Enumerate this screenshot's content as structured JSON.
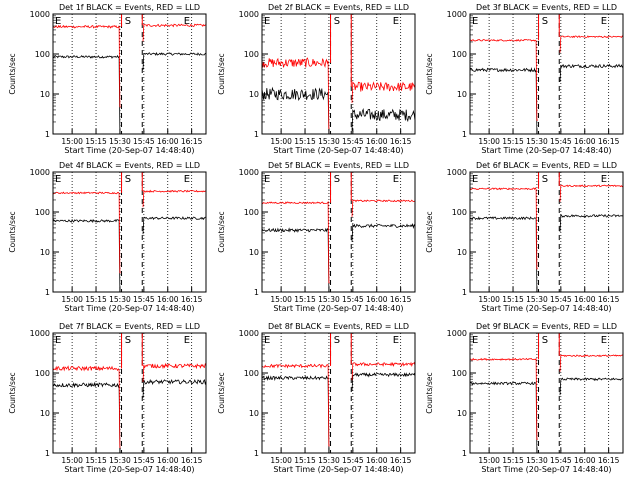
{
  "chart_data": [
    {
      "type": "line",
      "title": "Det 1f BLACK = Events, RED = LLD",
      "xlabel": "Start Time (20-Sep-07 14:48:40)",
      "ylabel": "Counts/sec",
      "yscale": "log",
      "ylim": [
        1,
        1000
      ],
      "xticks": [
        "15:00",
        "15:15",
        "15:30",
        "15:45",
        "16:00",
        "16:15"
      ],
      "markers": [
        {
          "x": "14:48",
          "label": "E"
        },
        {
          "x": "15:33",
          "label": "S"
        },
        {
          "x": "16:10",
          "label": "E"
        }
      ],
      "series": [
        {
          "name": "Events",
          "color": "#000000",
          "level_before": 85,
          "level_after": 100,
          "noise": 0.03
        },
        {
          "name": "LLD",
          "color": "#ff0000",
          "level_before": 480,
          "level_after": 520,
          "noise": 0.03
        }
      ]
    },
    {
      "type": "line",
      "title": "Det 2f BLACK = Events, RED = LLD",
      "xlabel": "Start Time (20-Sep-07 14:48:40)",
      "ylabel": "Counts/sec",
      "yscale": "log",
      "ylim": [
        1,
        1000
      ],
      "xticks": [
        "15:00",
        "15:15",
        "15:30",
        "15:45",
        "16:00",
        "16:15"
      ],
      "markers": [
        {
          "x": "14:48",
          "label": "E"
        },
        {
          "x": "15:33",
          "label": "S"
        },
        {
          "x": "16:10",
          "label": "E"
        }
      ],
      "series": [
        {
          "name": "Events",
          "color": "#000000",
          "level_before": 10,
          "level_after": 3,
          "noise": 0.15
        },
        {
          "name": "LLD",
          "color": "#ff0000",
          "level_before": 60,
          "level_after": 15,
          "noise": 0.12
        }
      ]
    },
    {
      "type": "line",
      "title": "Det 3f BLACK = Events, RED = LLD",
      "xlabel": "Start Time (20-Sep-07 14:48:40)",
      "ylabel": "Counts/sec",
      "yscale": "log",
      "ylim": [
        1,
        1000
      ],
      "xticks": [
        "15:00",
        "15:15",
        "15:30",
        "15:45",
        "16:00",
        "16:15"
      ],
      "markers": [
        {
          "x": "14:48",
          "label": "E"
        },
        {
          "x": "15:33",
          "label": "S"
        },
        {
          "x": "16:10",
          "label": "E"
        }
      ],
      "series": [
        {
          "name": "Events",
          "color": "#000000",
          "level_before": 40,
          "level_after": 50,
          "noise": 0.04
        },
        {
          "name": "LLD",
          "color": "#ff0000",
          "level_before": 220,
          "level_after": 270,
          "noise": 0.02
        }
      ]
    },
    {
      "type": "line",
      "title": "Det 4f BLACK = Events, RED = LLD",
      "xlabel": "Start Time (20-Sep-07 14:48:40)",
      "ylabel": "Counts/sec",
      "yscale": "log",
      "ylim": [
        1,
        1000
      ],
      "xticks": [
        "15:00",
        "15:15",
        "15:30",
        "15:45",
        "16:00",
        "16:15"
      ],
      "markers": [
        {
          "x": "14:48",
          "label": "E"
        },
        {
          "x": "15:33",
          "label": "S"
        },
        {
          "x": "16:10",
          "label": "E"
        }
      ],
      "series": [
        {
          "name": "Events",
          "color": "#000000",
          "level_before": 60,
          "level_after": 70,
          "noise": 0.03
        },
        {
          "name": "LLD",
          "color": "#ff0000",
          "level_before": 300,
          "level_after": 330,
          "noise": 0.02
        }
      ]
    },
    {
      "type": "line",
      "title": "Det 5f BLACK = Events, RED = LLD",
      "xlabel": "Start Time (20-Sep-07 14:48:40)",
      "ylabel": "Counts/sec",
      "yscale": "log",
      "ylim": [
        1,
        1000
      ],
      "xticks": [
        "15:00",
        "15:15",
        "15:30",
        "15:45",
        "16:00",
        "16:15"
      ],
      "markers": [
        {
          "x": "14:48",
          "label": "E"
        },
        {
          "x": "15:33",
          "label": "S"
        },
        {
          "x": "16:10",
          "label": "E"
        }
      ],
      "series": [
        {
          "name": "Events",
          "color": "#000000",
          "level_before": 35,
          "level_after": 45,
          "noise": 0.04
        },
        {
          "name": "LLD",
          "color": "#ff0000",
          "level_before": 170,
          "level_after": 190,
          "noise": 0.02
        }
      ]
    },
    {
      "type": "line",
      "title": "Det 6f BLACK = Events, RED = LLD",
      "xlabel": "Start Time (20-Sep-07 14:48:40)",
      "ylabel": "Counts/sec",
      "yscale": "log",
      "ylim": [
        1,
        1000
      ],
      "xticks": [
        "15:00",
        "15:15",
        "15:30",
        "15:45",
        "16:00",
        "16:15"
      ],
      "markers": [
        {
          "x": "14:48",
          "label": "E"
        },
        {
          "x": "15:33",
          "label": "S"
        },
        {
          "x": "16:10",
          "label": "E"
        }
      ],
      "series": [
        {
          "name": "Events",
          "color": "#000000",
          "level_before": 70,
          "level_after": 80,
          "noise": 0.03
        },
        {
          "name": "LLD",
          "color": "#ff0000",
          "level_before": 380,
          "level_after": 450,
          "noise": 0.02
        }
      ]
    },
    {
      "type": "line",
      "title": "Det 7f BLACK = Events, RED = LLD",
      "xlabel": "Start Time (20-Sep-07 14:48:40)",
      "ylabel": "Counts/sec",
      "yscale": "log",
      "ylim": [
        1,
        1000
      ],
      "xticks": [
        "15:00",
        "15:15",
        "15:30",
        "15:45",
        "16:00",
        "16:15"
      ],
      "markers": [
        {
          "x": "14:48",
          "label": "E"
        },
        {
          "x": "15:33",
          "label": "S"
        },
        {
          "x": "16:10",
          "label": "E"
        }
      ],
      "series": [
        {
          "name": "Events",
          "color": "#000000",
          "level_before": 50,
          "level_after": 60,
          "noise": 0.05
        },
        {
          "name": "LLD",
          "color": "#ff0000",
          "level_before": 130,
          "level_after": 150,
          "noise": 0.05
        }
      ]
    },
    {
      "type": "line",
      "title": "Det 8f BLACK = Events, RED = LLD",
      "xlabel": "Start Time (20-Sep-07 14:48:40)",
      "ylabel": "Counts/sec",
      "yscale": "log",
      "ylim": [
        1,
        1000
      ],
      "xticks": [
        "15:00",
        "15:15",
        "15:30",
        "15:45",
        "16:00",
        "16:15"
      ],
      "markers": [
        {
          "x": "14:48",
          "label": "E"
        },
        {
          "x": "15:33",
          "label": "S"
        },
        {
          "x": "16:10",
          "label": "E"
        }
      ],
      "series": [
        {
          "name": "Events",
          "color": "#000000",
          "level_before": 75,
          "level_after": 90,
          "noise": 0.04
        },
        {
          "name": "LLD",
          "color": "#ff0000",
          "level_before": 150,
          "level_after": 165,
          "noise": 0.04
        }
      ]
    },
    {
      "type": "line",
      "title": "Det 9f BLACK = Events, RED = LLD",
      "xlabel": "Start Time (20-Sep-07 14:48:40)",
      "ylabel": "Counts/sec",
      "yscale": "log",
      "ylim": [
        1,
        1000
      ],
      "xticks": [
        "15:00",
        "15:15",
        "15:30",
        "15:45",
        "16:00",
        "16:15"
      ],
      "markers": [
        {
          "x": "14:48",
          "label": "E"
        },
        {
          "x": "15:33",
          "label": "S"
        },
        {
          "x": "16:10",
          "label": "E"
        }
      ],
      "series": [
        {
          "name": "Events",
          "color": "#000000",
          "level_before": 55,
          "level_after": 70,
          "noise": 0.03
        },
        {
          "name": "LLD",
          "color": "#ff0000",
          "level_before": 220,
          "level_after": 270,
          "noise": 0.02
        }
      ]
    }
  ],
  "axes": {
    "x_start": "14:48",
    "x_end": "16:24",
    "gap_start": "15:31",
    "gap_end": "15:44",
    "yticks": [
      1,
      10,
      100,
      1000
    ],
    "ytick_labels": [
      "1",
      "10",
      "100",
      "1000"
    ]
  }
}
